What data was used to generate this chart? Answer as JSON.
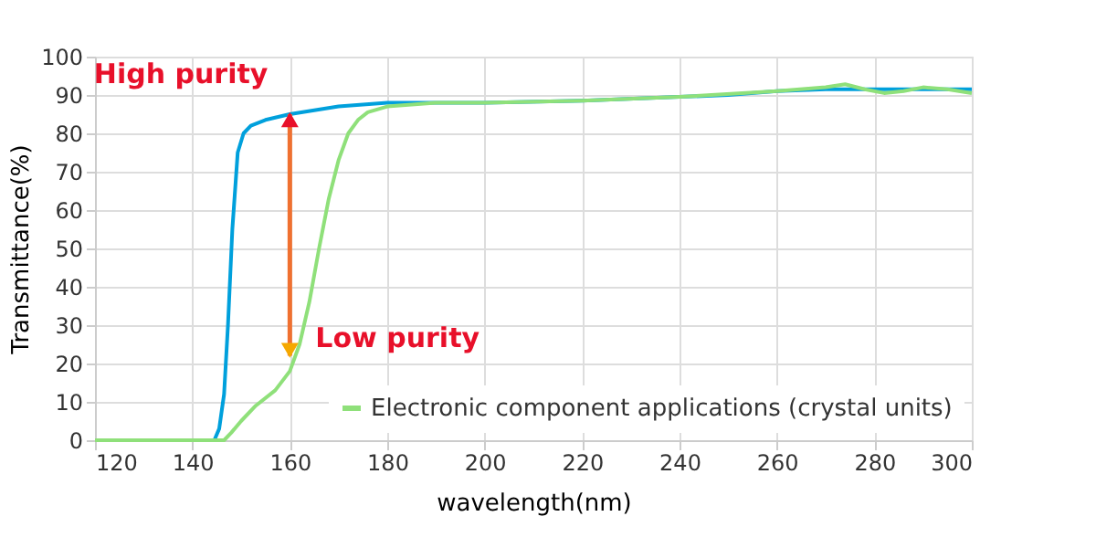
{
  "chart_data": {
    "type": "line",
    "xlabel": "wavelength(nm)",
    "ylabel": "Transmittance(%)",
    "xlim": [
      120,
      300
    ],
    "xticks": [
      120,
      140,
      160,
      180,
      200,
      220,
      240,
      260,
      280,
      300
    ],
    "ylim": [
      0,
      100
    ],
    "yticks": [
      0,
      10,
      20,
      30,
      40,
      50,
      60,
      70,
      80,
      90,
      100
    ],
    "grid": true,
    "legend": "bottom right",
    "series": [
      {
        "color": "#00a0dc",
        "x": [
          120,
          144.5,
          145.5,
          146.5,
          147.3,
          148.2,
          149.3,
          150.5,
          152,
          155,
          160,
          165,
          170,
          175,
          180,
          200,
          220,
          240,
          250,
          260,
          270,
          280,
          290,
          300
        ],
        "values": [
          0,
          0,
          3,
          12,
          30,
          55,
          75,
          80,
          82,
          83.5,
          85,
          86,
          87,
          87.5,
          88,
          88,
          88.5,
          89.5,
          90,
          91,
          91.5,
          91.5,
          91.5,
          91.5
        ]
      },
      {
        "name": "Electronic component applications (crystal units)",
        "color": "#8fe07a",
        "x": [
          120,
          146.5,
          148,
          150,
          153,
          157,
          160,
          162,
          164,
          166,
          168,
          170,
          172,
          174,
          176,
          180,
          190,
          200,
          220,
          240,
          260,
          270,
          274,
          278,
          282,
          286,
          290,
          295,
          300
        ],
        "values": [
          0,
          0,
          2,
          5,
          9,
          13,
          18,
          25,
          36,
          50,
          63,
          73,
          80,
          83.5,
          85.5,
          87,
          88,
          88,
          88.5,
          89.5,
          91,
          92,
          92.8,
          91.5,
          90.5,
          91,
          92,
          91.5,
          90.5
        ]
      }
    ],
    "annotations": [
      {
        "text": "High purity",
        "x": 160,
        "y": 85
      },
      {
        "text": "Low purity",
        "x": 160,
        "y": 22
      }
    ]
  }
}
